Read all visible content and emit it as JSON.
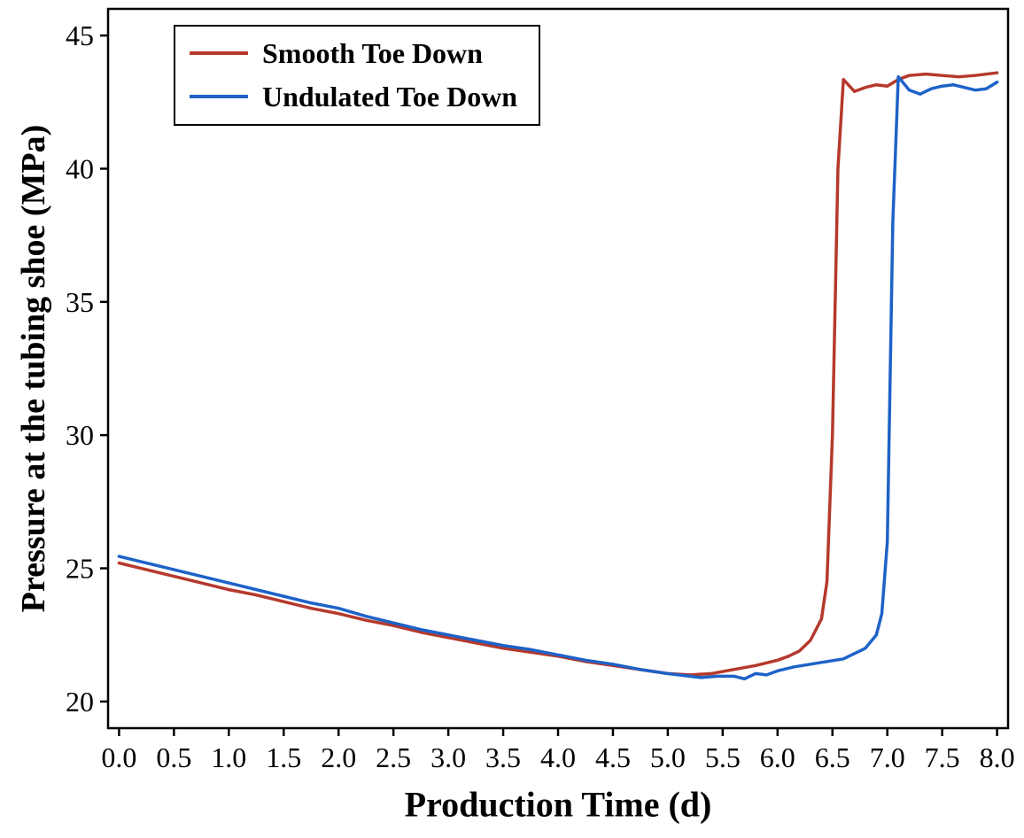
{
  "chart_data": {
    "type": "line",
    "title": "",
    "xlabel": "Production Time (d)",
    "ylabel": "Pressure at the tubing shoe (MPa)",
    "xlim": [
      -0.1,
      8.1
    ],
    "ylim": [
      19,
      46
    ],
    "grid": false,
    "legend_position": "top-left",
    "axis_color": "#000000",
    "xticks": [
      0,
      0.5,
      1,
      1.5,
      2,
      2.5,
      3,
      3.5,
      4,
      4.5,
      5,
      5.5,
      6,
      6.5,
      7,
      7.5,
      8
    ],
    "xtick_labels": [
      "0.0",
      "0.5",
      "1.0",
      "1.5",
      "2.0",
      "2.5",
      "3.0",
      "3.5",
      "4.0",
      "4.5",
      "5.0",
      "5.5",
      "6.0",
      "6.5",
      "7.0",
      "7.5",
      "8.0"
    ],
    "yticks": [
      20,
      25,
      30,
      35,
      40,
      45
    ],
    "ytick_labels": [
      "20",
      "25",
      "30",
      "35",
      "40",
      "45"
    ],
    "series": [
      {
        "name": "Smooth Toe Down",
        "color": "#b5392c",
        "x": [
          0,
          0.25,
          0.5,
          0.75,
          1.0,
          1.25,
          1.5,
          1.75,
          2.0,
          2.25,
          2.5,
          2.75,
          3.0,
          3.25,
          3.5,
          3.75,
          4.0,
          4.25,
          4.5,
          4.75,
          5.0,
          5.2,
          5.4,
          5.6,
          5.8,
          6.0,
          6.1,
          6.2,
          6.3,
          6.4,
          6.45,
          6.5,
          6.55,
          6.6,
          6.7,
          6.8,
          6.9,
          7.0,
          7.1,
          7.2,
          7.35,
          7.5,
          7.65,
          7.8,
          7.9,
          8.0
        ],
        "y": [
          25.2,
          24.95,
          24.7,
          24.45,
          24.2,
          24.0,
          23.75,
          23.5,
          23.3,
          23.05,
          22.85,
          22.6,
          22.4,
          22.2,
          22.0,
          21.85,
          21.7,
          21.5,
          21.35,
          21.2,
          21.05,
          21.0,
          21.05,
          21.2,
          21.35,
          21.55,
          21.7,
          21.9,
          22.3,
          23.1,
          24.5,
          30.0,
          40.0,
          43.35,
          42.9,
          43.05,
          43.15,
          43.1,
          43.35,
          43.5,
          43.55,
          43.5,
          43.45,
          43.5,
          43.55,
          43.6
        ]
      },
      {
        "name": "Undulated Toe Down",
        "color": "#1e62c8",
        "x": [
          0,
          0.25,
          0.5,
          0.75,
          1.0,
          1.25,
          1.5,
          1.75,
          2.0,
          2.25,
          2.5,
          2.75,
          3.0,
          3.25,
          3.5,
          3.75,
          4.0,
          4.25,
          4.5,
          4.75,
          5.0,
          5.2,
          5.3,
          5.45,
          5.6,
          5.7,
          5.8,
          5.9,
          6.0,
          6.15,
          6.3,
          6.45,
          6.6,
          6.7,
          6.8,
          6.9,
          6.95,
          7.0,
          7.05,
          7.1,
          7.2,
          7.3,
          7.4,
          7.5,
          7.6,
          7.7,
          7.8,
          7.9,
          8.0
        ],
        "y": [
          25.45,
          25.2,
          24.95,
          24.7,
          24.45,
          24.2,
          23.95,
          23.7,
          23.5,
          23.2,
          22.95,
          22.7,
          22.5,
          22.3,
          22.1,
          21.95,
          21.75,
          21.55,
          21.4,
          21.2,
          21.05,
          20.95,
          20.9,
          20.95,
          20.95,
          20.85,
          21.05,
          21.0,
          21.15,
          21.3,
          21.4,
          21.5,
          21.6,
          21.8,
          22.0,
          22.5,
          23.3,
          26.0,
          38.0,
          43.45,
          42.95,
          42.8,
          43.0,
          43.1,
          43.15,
          43.05,
          42.95,
          43.0,
          43.25
        ]
      }
    ]
  }
}
